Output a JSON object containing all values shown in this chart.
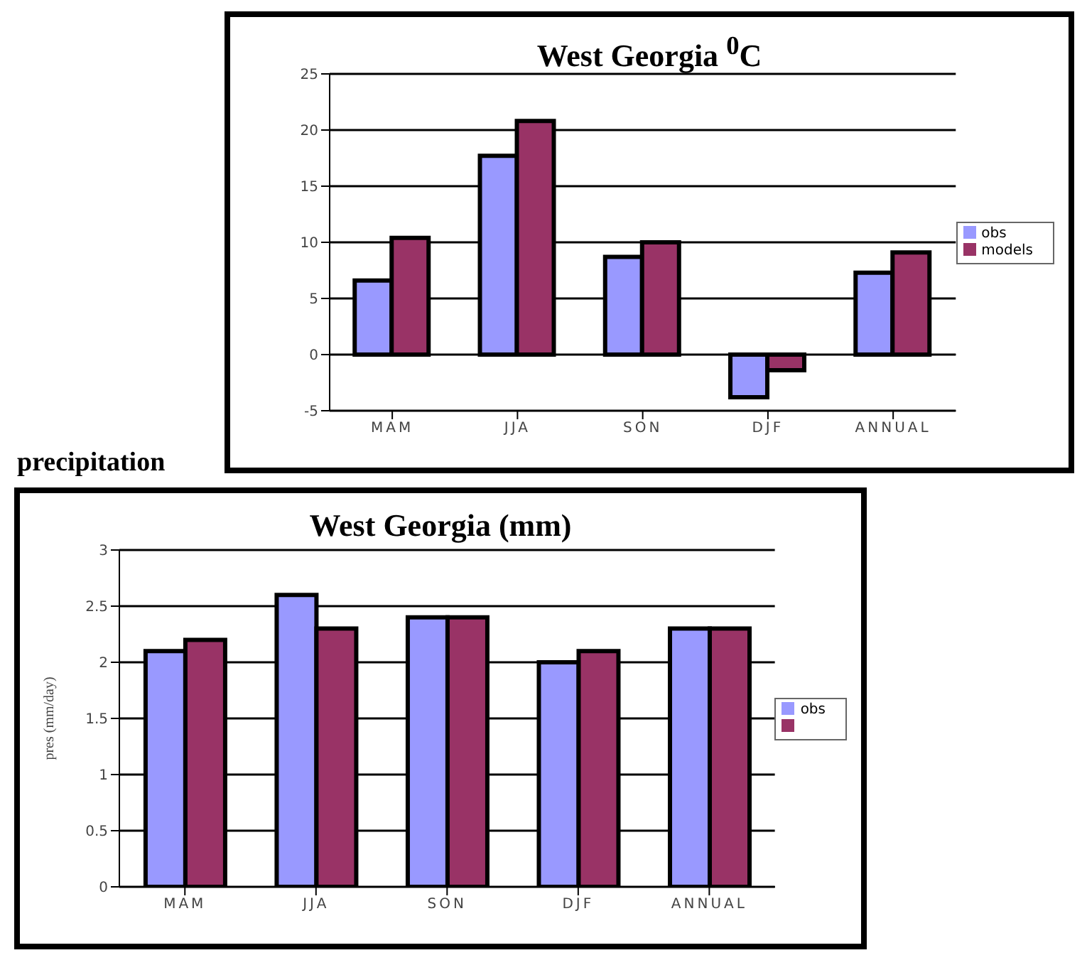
{
  "chart_data": [
    {
      "type": "bar",
      "title": "West Georgia $^{0}$C",
      "categories": [
        "MAM",
        "JJA",
        "SON",
        "DJF",
        "ANNUAL"
      ],
      "series": [
        {
          "name": "obs",
          "color": "#9999ff",
          "values": [
            6.6,
            17.7,
            8.7,
            -3.8,
            7.3
          ]
        },
        {
          "name": "models",
          "color": "#993366",
          "values": [
            10.4,
            20.8,
            10,
            -1.4,
            9.1
          ]
        }
      ],
      "ylim": [
        -5,
        25
      ],
      "yticks": [
        -5,
        0,
        5,
        10,
        15,
        20,
        25
      ],
      "grid": "y",
      "legend": "right"
    },
    {
      "type": "bar",
      "title": "West Georgia (mm)",
      "ylabel": "pres (mm/day)",
      "annotations": [
        "precipitation"
      ],
      "categories": [
        "MAM",
        "JJA",
        "SON",
        "DJF",
        "ANNUAL"
      ],
      "series": [
        {
          "name": "obs",
          "color": "#9999ff",
          "values": [
            2.1,
            2.6,
            2.4,
            2.0,
            2.3
          ]
        },
        {
          "color": "#993366",
          "values": [
            2.2,
            2.3,
            2.4,
            2.1,
            2.3
          ]
        }
      ],
      "ylim": [
        0,
        3
      ],
      "yticks": [
        0,
        0.5,
        1,
        1.5,
        2,
        2.5,
        3
      ],
      "grid": "y",
      "legend": "right"
    }
  ]
}
